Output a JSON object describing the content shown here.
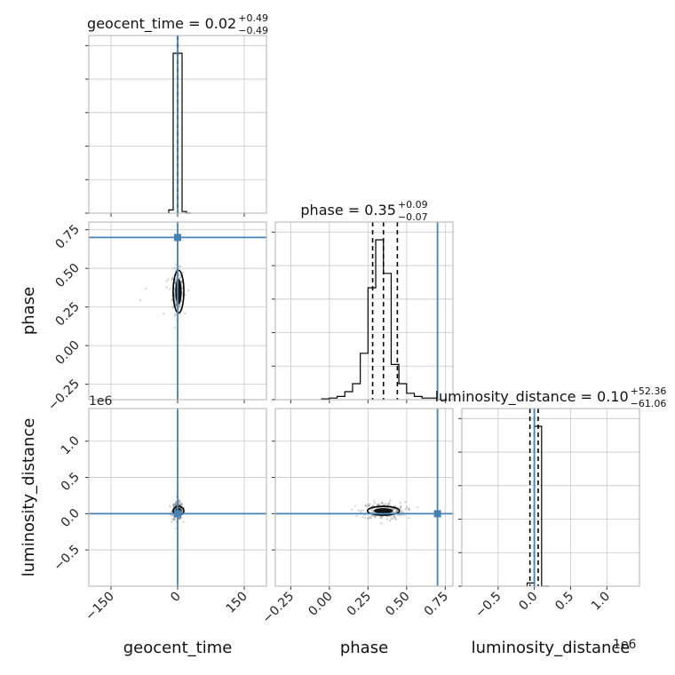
{
  "chart_data": {
    "type": "corner",
    "parameters": [
      "geocent_time",
      "phase",
      "luminosity_distance"
    ],
    "titles": [
      {
        "param": "geocent_time",
        "text": "geocent_time = 0.02",
        "plus": "+0.49",
        "minus": "−0.49"
      },
      {
        "param": "phase",
        "text": "phase = 0.35",
        "plus": "+0.09",
        "minus": "−0.07"
      },
      {
        "param": "luminosity_distance",
        "text": "luminosity_distance = 0.10",
        "plus": "+52.36",
        "minus": "−61.06"
      }
    ],
    "axis_labels": {
      "x": [
        "geocent_time",
        "phase",
        "luminosity_distance"
      ],
      "y": [
        "phase",
        "luminosity_distance"
      ]
    },
    "ranges": {
      "geocent_time": [
        -200,
        200
      ],
      "phase": [
        -0.35,
        0.8
      ],
      "luminosity_distance": [
        -1000000,
        1450000
      ]
    },
    "ticks": {
      "geocent_time": {
        "values": [
          -150,
          0,
          150
        ],
        "labels": [
          "−150",
          "0",
          "150"
        ]
      },
      "phase_x": {
        "values": [
          -0.25,
          0,
          0.25,
          0.5,
          0.75
        ],
        "labels": [
          "−0.25",
          "0.00",
          "0.25",
          "0.50",
          "0.75"
        ]
      },
      "phase_y": {
        "values": [
          -0.25,
          0,
          0.25,
          0.5,
          0.75
        ],
        "labels": [
          "−0.25",
          "0.00",
          "0.25",
          "0.50",
          "0.75"
        ]
      },
      "ld_x": {
        "values": [
          -500000,
          0,
          500000,
          1000000
        ],
        "labels": [
          "−0.5",
          "0.0",
          "0.5",
          "1.0"
        ]
      },
      "ld_y": {
        "values": [
          -500000,
          0,
          500000,
          1000000
        ],
        "labels": [
          "−0.5",
          "0.0",
          "0.5",
          "1.0"
        ]
      }
    },
    "offset_labels": {
      "ld_y": "1e6",
      "ld_x": "1e6"
    },
    "truths": {
      "geocent_time": 0,
      "phase": 0.7,
      "luminosity_distance": 0
    },
    "quantiles": {
      "geocent_time": [
        -0.47,
        0.02,
        0.51
      ],
      "phase": [
        0.28,
        0.35,
        0.44
      ],
      "luminosity_distance": [
        -60960,
        100,
        52460
      ]
    },
    "histograms": {
      "geocent_time": {
        "edges": [
          -20,
          -10,
          0,
          10,
          20,
          30
        ],
        "counts": [
          0.02,
          1.0,
          1.0,
          0.01,
          0
        ]
      },
      "phase": {
        "edges": [
          -0.05,
          0.0,
          0.05,
          0.1,
          0.15,
          0.2,
          0.25,
          0.3,
          0.35,
          0.4,
          0.45,
          0.5,
          0.55,
          0.6,
          0.65,
          0.7,
          0.75
        ],
        "counts": [
          0.005,
          0.01,
          0.02,
          0.05,
          0.1,
          0.29,
          0.7,
          1.0,
          0.79,
          0.22,
          0.1,
          0.04,
          0.02,
          0.01,
          0.01,
          0.0
        ]
      },
      "luminosity_distance": {
        "edges": [
          -100000,
          0,
          100000,
          200000
        ],
        "counts": [
          0.02,
          1.0,
          0
        ]
      }
    },
    "grid": true
  }
}
